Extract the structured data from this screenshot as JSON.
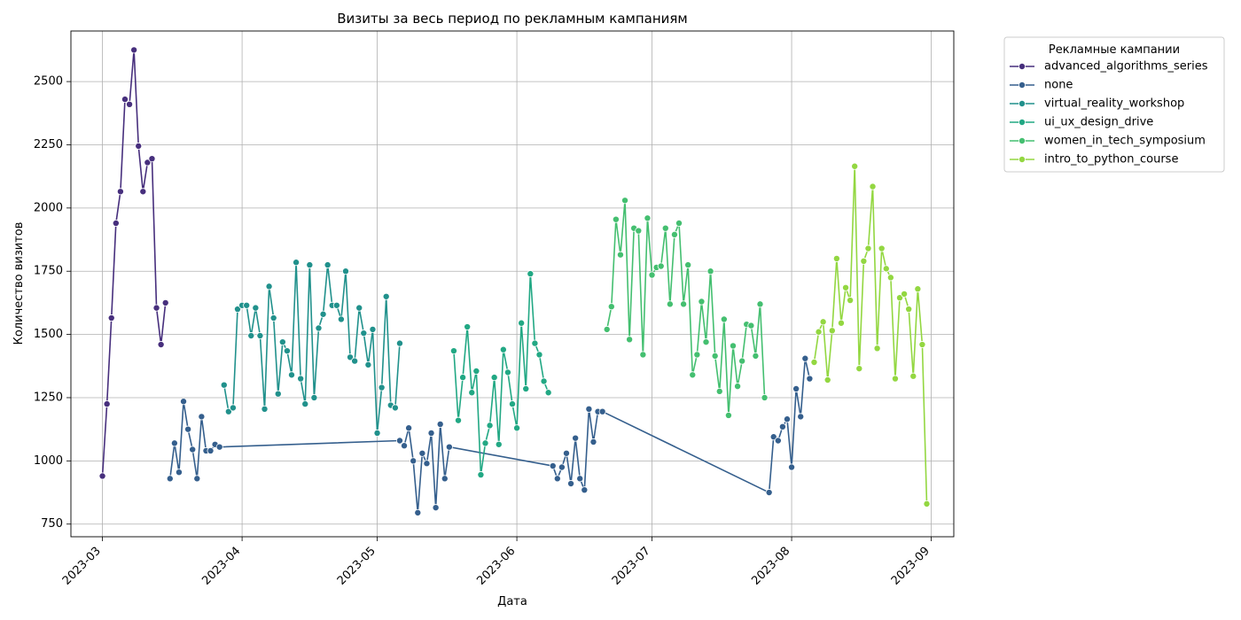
{
  "chart_data": {
    "type": "line",
    "title": "Визиты за весь период по рекламным кампаниям",
    "xlabel": "Дата",
    "ylabel": "Количество визитов",
    "x_range": [
      "2023-02-22",
      "2023-09-06"
    ],
    "ylim": [
      700,
      2700
    ],
    "x_ticks": [
      "2023-03-01",
      "2023-04-01",
      "2023-05-01",
      "2023-06-01",
      "2023-07-01",
      "2023-08-01",
      "2023-09-01"
    ],
    "x_tick_labels": [
      "2023-03",
      "2023-04",
      "2023-05",
      "2023-06",
      "2023-07",
      "2023-08",
      "2023-09"
    ],
    "y_ticks": [
      750,
      1000,
      1250,
      1500,
      1750,
      2000,
      2250,
      2500
    ],
    "grid": true,
    "legend_title": "Рекламные кампании",
    "legend_position": "outside-top-right",
    "series": [
      {
        "name": "advanced_algorithms_series",
        "color": "#472f7d",
        "x": [
          "2023-03-01",
          "2023-03-02",
          "2023-03-03",
          "2023-03-04",
          "2023-03-05",
          "2023-03-06",
          "2023-03-07",
          "2023-03-08",
          "2023-03-09",
          "2023-03-10",
          "2023-03-11",
          "2023-03-12",
          "2023-03-13",
          "2023-03-14",
          "2023-03-15"
        ],
        "y": [
          940,
          1225,
          1565,
          1940,
          2065,
          2430,
          2410,
          2625,
          2245,
          2065,
          2180,
          2195,
          1605,
          1460,
          1625
        ]
      },
      {
        "name": "none",
        "color": "#355f8d",
        "x": [
          "2023-03-16",
          "2023-03-17",
          "2023-03-18",
          "2023-03-19",
          "2023-03-20",
          "2023-03-21",
          "2023-03-22",
          "2023-03-23",
          "2023-03-24",
          "2023-03-25",
          "2023-03-26",
          "2023-03-27",
          "2023-05-06",
          "2023-05-07",
          "2023-05-08",
          "2023-05-09",
          "2023-05-10",
          "2023-05-11",
          "2023-05-12",
          "2023-05-13",
          "2023-05-14",
          "2023-05-15",
          "2023-05-16",
          "2023-05-17",
          "2023-06-09",
          "2023-06-10",
          "2023-06-11",
          "2023-06-12",
          "2023-06-13",
          "2023-06-14",
          "2023-06-15",
          "2023-06-16",
          "2023-06-17",
          "2023-06-18",
          "2023-06-19",
          "2023-06-20",
          "2023-07-27",
          "2023-07-28",
          "2023-07-29",
          "2023-07-30",
          "2023-07-31",
          "2023-08-01",
          "2023-08-02",
          "2023-08-03",
          "2023-08-04",
          "2023-08-05"
        ],
        "y": [
          930,
          1070,
          955,
          1235,
          1125,
          1045,
          930,
          1175,
          1040,
          1040,
          1065,
          1055,
          1080,
          1060,
          1130,
          1000,
          795,
          1030,
          990,
          1110,
          815,
          1145,
          930,
          1055,
          980,
          930,
          975,
          1030,
          910,
          1090,
          930,
          885,
          1205,
          1075,
          1195,
          1195,
          875,
          1095,
          1080,
          1135,
          1165,
          975,
          1285,
          1175,
          1405,
          1325
        ]
      },
      {
        "name": "virtual_reality_workshop",
        "color": "#21918c",
        "x": [
          "2023-03-28",
          "2023-03-29",
          "2023-03-30",
          "2023-03-31",
          "2023-04-01",
          "2023-04-02",
          "2023-04-03",
          "2023-04-04",
          "2023-04-05",
          "2023-04-06",
          "2023-04-07",
          "2023-04-08",
          "2023-04-09",
          "2023-04-10",
          "2023-04-11",
          "2023-04-12",
          "2023-04-13",
          "2023-04-14",
          "2023-04-15",
          "2023-04-16",
          "2023-04-17",
          "2023-04-18",
          "2023-04-19",
          "2023-04-20",
          "2023-04-21",
          "2023-04-22",
          "2023-04-23",
          "2023-04-24",
          "2023-04-25",
          "2023-04-26",
          "2023-04-27",
          "2023-04-28",
          "2023-04-29",
          "2023-04-30",
          "2023-05-01",
          "2023-05-02",
          "2023-05-03",
          "2023-05-04",
          "2023-05-05",
          "2023-05-06"
        ],
        "y": [
          1300,
          1195,
          1210,
          1600,
          1615,
          1615,
          1495,
          1605,
          1495,
          1205,
          1690,
          1565,
          1265,
          1470,
          1435,
          1340,
          1785,
          1325,
          1225,
          1775,
          1250,
          1525,
          1580,
          1775,
          1615,
          1615,
          1560,
          1750,
          1410,
          1395,
          1605,
          1505,
          1380,
          1520,
          1110,
          1290,
          1650,
          1220,
          1210,
          1465
        ]
      },
      {
        "name": "ui_ux_design_drive",
        "color": "#22a884",
        "x": [
          "2023-05-18",
          "2023-05-19",
          "2023-05-20",
          "2023-05-21",
          "2023-05-22",
          "2023-05-23",
          "2023-05-24",
          "2023-05-25",
          "2023-05-26",
          "2023-05-27",
          "2023-05-28",
          "2023-05-29",
          "2023-05-30",
          "2023-05-31",
          "2023-06-01",
          "2023-06-02",
          "2023-06-03",
          "2023-06-04",
          "2023-06-05",
          "2023-06-06",
          "2023-06-07",
          "2023-06-08"
        ],
        "y": [
          1435,
          1160,
          1330,
          1530,
          1270,
          1355,
          945,
          1070,
          1140,
          1330,
          1065,
          1440,
          1350,
          1225,
          1130,
          1545,
          1285,
          1740,
          1465,
          1420,
          1315,
          1270
        ]
      },
      {
        "name": "women_in_tech_symposium",
        "color": "#44bf70",
        "x": [
          "2023-06-21",
          "2023-06-22",
          "2023-06-23",
          "2023-06-24",
          "2023-06-25",
          "2023-06-26",
          "2023-06-27",
          "2023-06-28",
          "2023-06-29",
          "2023-06-30",
          "2023-07-01",
          "2023-07-02",
          "2023-07-03",
          "2023-07-04",
          "2023-07-05",
          "2023-07-06",
          "2023-07-07",
          "2023-07-08",
          "2023-07-09",
          "2023-07-10",
          "2023-07-11",
          "2023-07-12",
          "2023-07-13",
          "2023-07-14",
          "2023-07-15",
          "2023-07-16",
          "2023-07-17",
          "2023-07-18",
          "2023-07-19",
          "2023-07-20",
          "2023-07-21",
          "2023-07-22",
          "2023-07-23",
          "2023-07-24",
          "2023-07-25",
          "2023-07-26"
        ],
        "y": [
          1520,
          1610,
          1955,
          1815,
          2030,
          1480,
          1920,
          1910,
          1420,
          1960,
          1735,
          1765,
          1770,
          1920,
          1620,
          1895,
          1940,
          1620,
          1775,
          1340,
          1420,
          1630,
          1470,
          1750,
          1415,
          1275,
          1560,
          1180,
          1455,
          1295,
          1395,
          1540,
          1535,
          1415,
          1620,
          1250
        ]
      },
      {
        "name": "intro_to_python_course",
        "color": "#93d741",
        "x": [
          "2023-08-06",
          "2023-08-07",
          "2023-08-08",
          "2023-08-09",
          "2023-08-10",
          "2023-08-11",
          "2023-08-12",
          "2023-08-13",
          "2023-08-14",
          "2023-08-15",
          "2023-08-16",
          "2023-08-17",
          "2023-08-18",
          "2023-08-19",
          "2023-08-20",
          "2023-08-21",
          "2023-08-22",
          "2023-08-23",
          "2023-08-24",
          "2023-08-25",
          "2023-08-26",
          "2023-08-27",
          "2023-08-28",
          "2023-08-29",
          "2023-08-30",
          "2023-08-31"
        ],
        "y": [
          1390,
          1510,
          1550,
          1320,
          1515,
          1800,
          1545,
          1685,
          1635,
          2165,
          1365,
          1790,
          1840,
          2085,
          1445,
          1840,
          1760,
          1725,
          1325,
          1645,
          1660,
          1600,
          1335,
          1680,
          1460,
          830
        ]
      }
    ]
  }
}
